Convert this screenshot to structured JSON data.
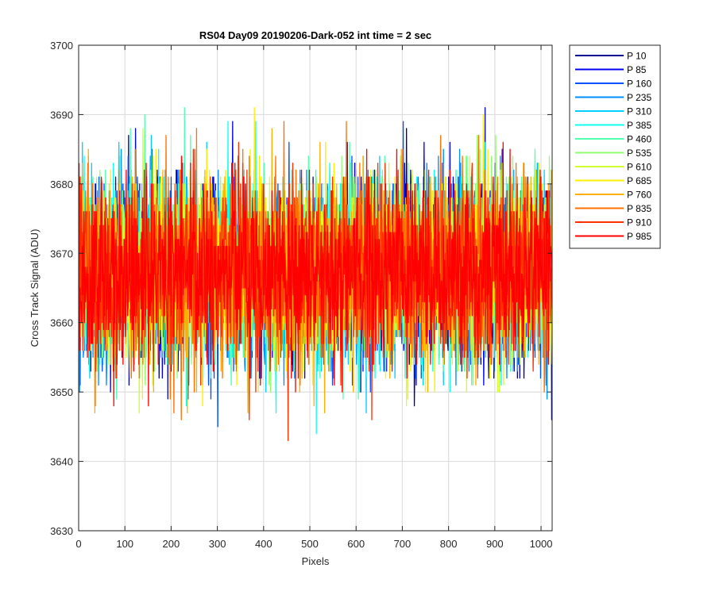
{
  "chart_data": {
    "type": "line",
    "title": "RS04 Day09 20190206-Dark-052 int time = 2 sec",
    "xlabel": "Pixels",
    "ylabel": "Cross Track Signal (ADU)",
    "xlim": [
      0,
      1024
    ],
    "ylim": [
      3630,
      3700
    ],
    "xticks": [
      0,
      100,
      200,
      300,
      400,
      500,
      600,
      700,
      800,
      900,
      1000
    ],
    "yticks": [
      3630,
      3640,
      3650,
      3660,
      3670,
      3680,
      3690,
      3700
    ],
    "grid": true,
    "legend_position": "outside-top-right",
    "x_range": [
      1,
      1024
    ],
    "signal_mean": 3667.5,
    "signal_min": 3639,
    "signal_max": 3698,
    "series": [
      {
        "name": "P 10",
        "color": "#00008f"
      },
      {
        "name": "P 85",
        "color": "#0000ef"
      },
      {
        "name": "P 160",
        "color": "#0050ff"
      },
      {
        "name": "P 235",
        "color": "#008fff"
      },
      {
        "name": "P 310",
        "color": "#00cfff"
      },
      {
        "name": "P 385",
        "color": "#10ffef"
      },
      {
        "name": "P 460",
        "color": "#50ffaf"
      },
      {
        "name": "P 535",
        "color": "#8fff70"
      },
      {
        "name": "P 610",
        "color": "#cfff30"
      },
      {
        "name": "P 685",
        "color": "#ffef00"
      },
      {
        "name": "P 760",
        "color": "#ffaf00"
      },
      {
        "name": "P 835",
        "color": "#ff7000"
      },
      {
        "name": "P 910",
        "color": "#ff3000"
      },
      {
        "name": "P 985",
        "color": "#ff0000"
      }
    ]
  }
}
